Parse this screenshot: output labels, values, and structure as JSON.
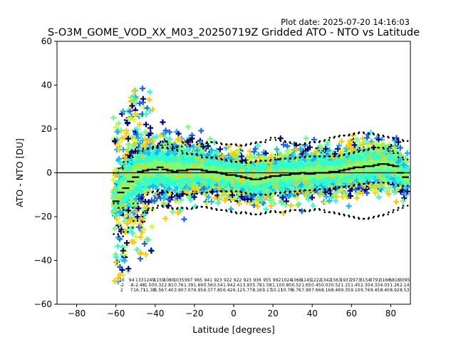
{
  "header": {
    "plot_date": "Plot date: 2025-07-20 14:16:03"
  },
  "chart_data": {
    "type": "scatter",
    "title": "S-O3M_GOME_VOD_XX_M03_20250719Z Gridded ATO - NTO vs Latitude",
    "xlabel": "Latitude [degrees]",
    "ylabel": "ATO - NTO [DU]",
    "xlim": [
      -90,
      90
    ],
    "ylim": [
      -60,
      60
    ],
    "xticks": [
      -80,
      -60,
      -40,
      -20,
      0,
      20,
      40,
      60,
      80
    ],
    "yticks": [
      -60,
      -40,
      -20,
      0,
      20,
      40,
      60
    ],
    "xtick_labels": [
      "−80",
      "−60",
      "−40",
      "−20",
      "0",
      "20",
      "40",
      "60",
      "80"
    ],
    "ytick_labels": [
      "−60",
      "−40",
      "−20",
      "0",
      "20",
      "40",
      "60"
    ],
    "marker": "plus",
    "density_colors": [
      "#00008b",
      "#1464ff",
      "#14b4ff",
      "#28ffd2",
      "#78ff78",
      "#d2ff28",
      "#ffc800"
    ],
    "zero_line": 0,
    "x": [
      -60,
      -57.5,
      -55,
      -52.5,
      -50,
      -47.5,
      -45,
      -42.5,
      -40,
      -37.5,
      -35,
      -32.5,
      -30,
      -27.5,
      -25,
      -22.5,
      -20,
      -17.5,
      -15,
      -12.5,
      -10,
      -7.5,
      -5,
      -2.5,
      0,
      2.5,
      5,
      7.5,
      10,
      12.5,
      15,
      17.5,
      20,
      22.5,
      25,
      27.5,
      30,
      32.5,
      35,
      37.5,
      40,
      42.5,
      45,
      47.5,
      50,
      52.5,
      55,
      57.5,
      60,
      62.5,
      65,
      67.5,
      70,
      72.5,
      75,
      77.5,
      80,
      82.5,
      85,
      87.5
    ],
    "series": [
      {
        "values": [
          -13,
          -9,
          -7,
          -4,
          -2,
          0.5,
          1,
          1.5,
          1.5,
          2.5,
          1.5,
          1,
          0.5,
          1,
          1,
          1.5,
          1.5,
          1.5,
          1,
          0.5,
          0.5,
          0,
          -0.5,
          -1,
          -1,
          -1.5,
          -2,
          -2.5,
          -3,
          -3,
          -2.5,
          -2,
          -1.5,
          -1.5,
          -1,
          -1,
          -0.5,
          -0.5,
          0,
          -0.5,
          -0.5,
          0,
          0,
          0,
          0.5,
          0.5,
          1,
          1.5,
          2,
          2.5,
          2.5,
          3,
          3,
          3.5,
          4,
          4,
          3.5,
          3,
          0,
          -2
        ]
      },
      {
        "values": [
          0,
          2,
          5,
          7,
          9,
          10,
          11,
          11,
          11.5,
          11.5,
          11.5,
          11,
          10.5,
          10,
          9,
          8.5,
          8.5,
          8,
          7,
          7,
          7,
          6.5,
          6,
          5.5,
          5,
          5,
          5,
          4.5,
          5,
          5.5,
          5.5,
          5.5,
          6,
          6,
          6.5,
          6.5,
          6.5,
          7,
          7,
          7.5,
          7.5,
          7.5,
          7.5,
          7.5,
          7.5,
          7.5,
          8,
          8.5,
          9,
          9.5,
          10,
          10.5,
          11,
          11.5,
          11.5,
          11,
          10,
          9,
          7,
          6
        ]
      },
      {
        "values": [
          -14,
          -16,
          -17,
          -16,
          -14,
          -12,
          -10,
          -9,
          -8.5,
          -8,
          -8.5,
          -9,
          -9.5,
          -10,
          -10,
          -10,
          -9.5,
          -9.5,
          -9,
          -9,
          -8.5,
          -8.5,
          -8.5,
          -8.5,
          -8.5,
          -8.5,
          -9,
          -9.5,
          -10,
          -10,
          -10,
          -10,
          -9.5,
          -9,
          -9,
          -8.5,
          -8.5,
          -8.5,
          -8,
          -8,
          -8,
          -7.5,
          -7.5,
          -7.5,
          -7,
          -7,
          -6.5,
          -6.5,
          -6,
          -5.5,
          -5,
          -5,
          -4.5,
          -4.5,
          -4.5,
          -4.5,
          -5,
          -5.5,
          -6,
          -6
        ]
      },
      {
        "values": [
          null,
          null,
          null,
          null,
          null,
          null,
          null,
          11,
          12,
          12.5,
          14,
          13,
          11.5,
          12,
          14,
          15,
          14,
          13,
          13.5,
          14,
          14,
          13.5,
          13,
          13,
          13,
          12.5,
          12.5,
          13,
          13.5,
          14,
          14,
          15,
          16,
          15,
          14.5,
          14,
          13.5,
          13,
          13,
          13.5,
          14,
          14,
          14.5,
          15,
          16,
          16.5,
          17,
          17,
          17.5,
          18,
          18.5,
          18,
          18,
          17.5,
          17,
          16.5,
          16,
          15.5,
          15,
          14.5
        ]
      },
      {
        "values": [
          -28,
          -29,
          -27,
          -25,
          -22,
          -20,
          -18,
          -17,
          -16,
          -15,
          -15.5,
          -16,
          -16.5,
          -16,
          -16,
          -16.5,
          -16,
          -15.5,
          -15.5,
          -16,
          -16.5,
          -17,
          -17,
          -17.5,
          -18,
          -18.5,
          -18,
          -18.5,
          -19,
          -19,
          -18.5,
          -18,
          -17.5,
          -18,
          -18,
          -17.5,
          -17,
          -17,
          -17,
          -17.5,
          -17,
          -16.5,
          -17,
          -18,
          -18,
          -18.5,
          -19,
          -19.5,
          -20,
          -20.5,
          -21,
          -21,
          -20.5,
          -20,
          -19.5,
          -19,
          -18,
          -17,
          -16,
          -15
        ]
      }
    ],
    "count_labels": [
      {
        "x": -57,
        "text": [
          "10",
          "-2",
          "2"
        ]
      },
      {
        "x": -52,
        "text": [
          "94",
          "-8",
          "7"
        ]
      },
      {
        "x": -48,
        "text": [
          "133",
          "-2.48",
          "16.71"
        ]
      },
      {
        "x": -43,
        "text": [
          "1249",
          "1.50",
          "11.38"
        ]
      },
      {
        "x": -38,
        "text": [
          "1159",
          "0.32",
          "5.56"
        ]
      },
      {
        "x": -33,
        "text": [
          "1080",
          "2.81",
          "7.40"
        ]
      },
      {
        "x": -28,
        "text": [
          "1035",
          "0.76",
          "3.90"
        ]
      },
      {
        "x": -23,
        "text": [
          "997",
          "1.39",
          "7.07"
        ]
      },
      {
        "x": -18,
        "text": [
          "965",
          "1.69",
          "6.95"
        ]
      },
      {
        "x": -13,
        "text": [
          "941",
          "0.56",
          "6.37"
        ]
      },
      {
        "x": -8,
        "text": [
          "923",
          "0.54",
          "7.85"
        ]
      },
      {
        "x": -3,
        "text": [
          "922",
          "1.94",
          "6.42"
        ]
      },
      {
        "x": 2,
        "text": [
          "922",
          "2.41",
          "6.12"
        ]
      },
      {
        "x": 7,
        "text": [
          "923",
          "3.93",
          "5.77"
        ]
      },
      {
        "x": 12,
        "text": [
          "936",
          "5.78",
          "8.16"
        ]
      },
      {
        "x": 17,
        "text": [
          "955",
          "1.58",
          "9.17"
        ]
      },
      {
        "x": 22,
        "text": [
          "992",
          "1.10",
          "10.11"
        ]
      },
      {
        "x": 27,
        "text": [
          "1024",
          "0.80",
          "10.76"
        ]
      },
      {
        "x": 32,
        "text": [
          "1068",
          "0.52",
          "6.76"
        ]
      },
      {
        "x": 37,
        "text": [
          "1145",
          "1.65",
          "7.99"
        ]
      },
      {
        "x": 42,
        "text": [
          "1222",
          "0.45",
          "7.66"
        ]
      },
      {
        "x": 47,
        "text": [
          "1342",
          "0.03",
          "8.16"
        ]
      },
      {
        "x": 52,
        "text": [
          "1563",
          "0.52",
          "8.49"
        ]
      },
      {
        "x": 57,
        "text": [
          "1937",
          "1.15",
          "9.35"
        ]
      },
      {
        "x": 62,
        "text": [
          "2973",
          "1.45",
          "9.10"
        ]
      },
      {
        "x": 67,
        "text": [
          "3154",
          "2.30",
          "9.76"
        ]
      },
      {
        "x": 72,
        "text": [
          "3791",
          "4.33",
          "9.45"
        ]
      },
      {
        "x": 77,
        "text": [
          "3166",
          "4.03",
          "8.40"
        ]
      },
      {
        "x": 82,
        "text": [
          "6816",
          "1.26",
          "8.92"
        ]
      },
      {
        "x": 87,
        "text": [
          "3095",
          "2.14",
          "8.53"
        ]
      }
    ]
  }
}
